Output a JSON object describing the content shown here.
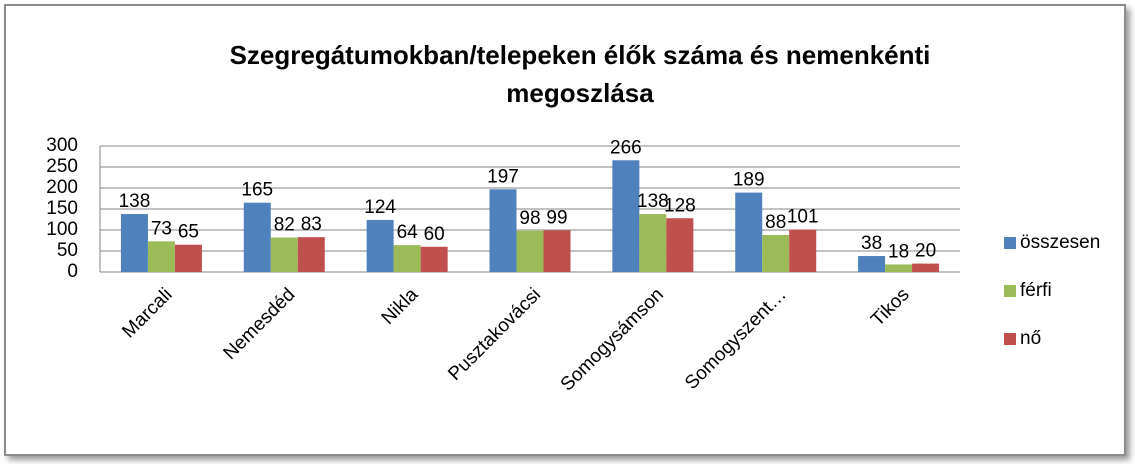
{
  "chart_data": {
    "type": "bar",
    "title": "Szegregátumokban/telepeken élők száma és nemenkénti megoszlása",
    "categories": [
      "Marcali",
      "Nemesdéd",
      "Nikla",
      "Pusztakovácsi",
      "Somogysámson",
      "Somogyszent…",
      "Tikos"
    ],
    "series": [
      {
        "name": "összesen",
        "color": "#4f81bd",
        "values": [
          138,
          165,
          124,
          197,
          266,
          189,
          38
        ]
      },
      {
        "name": "férfi",
        "color": "#9bbb59",
        "values": [
          73,
          82,
          64,
          98,
          138,
          88,
          18
        ]
      },
      {
        "name": "nő",
        "color": "#c0504d",
        "values": [
          65,
          83,
          60,
          99,
          128,
          101,
          20
        ]
      }
    ],
    "ylim": [
      0,
      300
    ],
    "yticks": [
      0,
      50,
      100,
      150,
      200,
      250,
      300
    ],
    "grid": true,
    "legend": "right"
  }
}
